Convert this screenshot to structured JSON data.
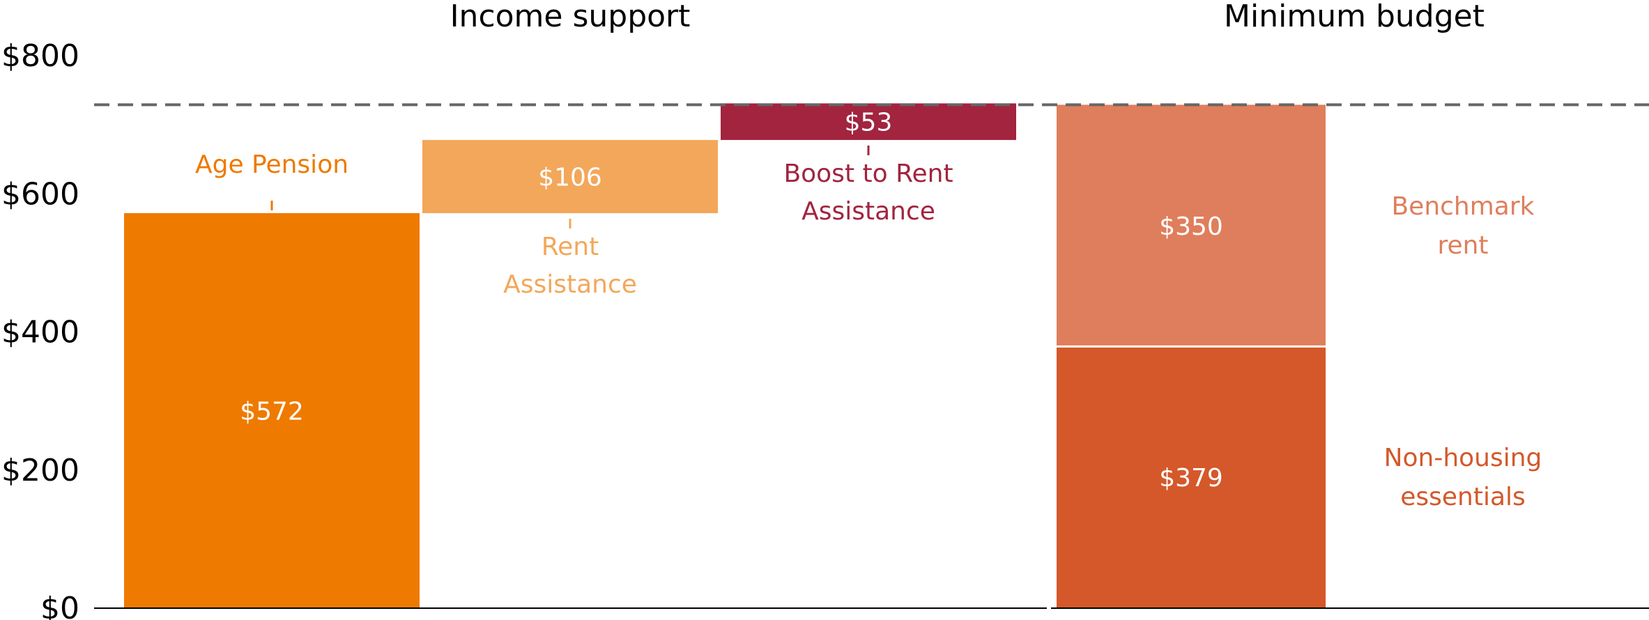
{
  "chart_data": {
    "type": "bar",
    "panels": [
      {
        "title": "Income support",
        "kind": "waterfall"
      },
      {
        "title": "Minimum budget",
        "kind": "stacked"
      }
    ],
    "yaxis": {
      "ylim": [
        0,
        800
      ],
      "ticks": [
        0,
        200,
        400,
        600,
        800
      ],
      "tick_labels": [
        "$0",
        "$200",
        "$400",
        "$600",
        "$800"
      ]
    },
    "reference_line": {
      "value": 729,
      "style": "dashed"
    },
    "income_support": [
      {
        "label": "Age Pension",
        "value": 572,
        "value_label": "$572",
        "base": 0,
        "color": "#EE7A00",
        "label_position": "above"
      },
      {
        "label": "Rent Assistance",
        "value": 106,
        "value_label": "$106",
        "base": 572,
        "color": "#F3A75A",
        "label_position": "below"
      },
      {
        "label": "Boost to Rent Assistance",
        "value": 53,
        "value_label": "$53",
        "base": 678,
        "color": "#A2243F",
        "label_position": "below"
      }
    ],
    "minimum_budget": [
      {
        "label": "Non-housing essentials",
        "value": 379,
        "value_label": "$379",
        "base": 0,
        "color": "#D4582A"
      },
      {
        "label": "Benchmark rent",
        "value": 350,
        "value_label": "$350",
        "base": 379,
        "color": "#DF7E5C"
      }
    ],
    "grid": false,
    "legend": "inline"
  }
}
